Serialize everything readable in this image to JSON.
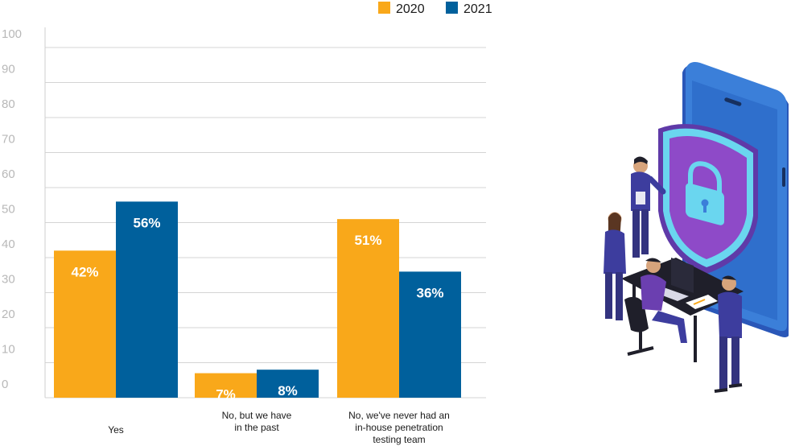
{
  "chart_data": {
    "type": "bar",
    "categories": [
      [
        "Yes"
      ],
      [
        "No, but we have",
        "in the past"
      ],
      [
        "No, we've never had an",
        "in-house penetration",
        "testing team"
      ]
    ],
    "series": [
      {
        "name": "2020",
        "color": "#F9A81A",
        "values": [
          42,
          7,
          51
        ],
        "labels": [
          "42%",
          "7%",
          "51%"
        ]
      },
      {
        "name": "2021",
        "color": "#00609C",
        "values": [
          56,
          8,
          36
        ],
        "labels": [
          "56%",
          "8%",
          "36%"
        ]
      }
    ],
    "y_ticks": [
      0,
      10,
      20,
      30,
      40,
      50,
      60,
      70,
      80,
      90,
      100
    ],
    "ylim": [
      0,
      100
    ],
    "grid": true,
    "legend_position": "top-right"
  },
  "illustration": {
    "subject": "security-team-illustration",
    "colors": {
      "phone": "#3b7fd9",
      "shield": "#8e4ac8",
      "lock": "#6ad6ef",
      "people": "#3d3d9e"
    }
  }
}
